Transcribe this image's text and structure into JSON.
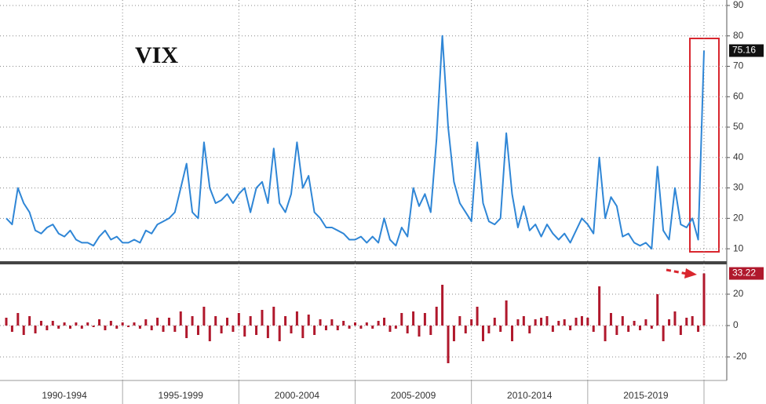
{
  "chart_data": [
    {
      "type": "line",
      "annotation": "VIX",
      "series": [
        {
          "color": "#2f86d6",
          "values": [
            20,
            18,
            30,
            25,
            22,
            16,
            15,
            17,
            18,
            15,
            14,
            16,
            13,
            12,
            12,
            11,
            14,
            16,
            13,
            14,
            12,
            12,
            13,
            12,
            16,
            15,
            18,
            19,
            20,
            22,
            30,
            38,
            22,
            20,
            45,
            30,
            25,
            26,
            28,
            25,
            28,
            30,
            22,
            30,
            32,
            25,
            43,
            25,
            22,
            28,
            45,
            30,
            34,
            22,
            20,
            17,
            17,
            16,
            15,
            13,
            13,
            14,
            12,
            14,
            12,
            20,
            13,
            11,
            17,
            14,
            30,
            24,
            28,
            22,
            46,
            80,
            50,
            32,
            25,
            22,
            19,
            45,
            25,
            19,
            18,
            20,
            48,
            28,
            17,
            24,
            16,
            18,
            14,
            18,
            15,
            13,
            15,
            12,
            16,
            20,
            18,
            15,
            40,
            20,
            27,
            24,
            14,
            15,
            12,
            11,
            12,
            10,
            37,
            16,
            13,
            30,
            18,
            17,
            20,
            13,
            75.16
          ]
        }
      ],
      "ylim": [
        5.9,
        91.8
      ],
      "yticks": [
        10,
        20,
        30,
        40,
        50,
        60,
        70,
        80,
        90
      ],
      "grid": true
    },
    {
      "type": "bar",
      "color": "#b0182c",
      "categories": [
        null,
        null,
        null,
        null,
        null,
        null,
        null,
        null,
        null,
        null,
        "1990-1994",
        null,
        null,
        null,
        null,
        null,
        null,
        null,
        null,
        null,
        null,
        null,
        null,
        null,
        null,
        null,
        null,
        null,
        null,
        null,
        "1995-1999",
        null,
        null,
        null,
        null,
        null,
        null,
        null,
        null,
        null,
        null,
        null,
        null,
        null,
        null,
        null,
        null,
        null,
        null,
        null,
        "2000-2004",
        null,
        null,
        null,
        null,
        null,
        null,
        null,
        null,
        null,
        null,
        null,
        null,
        null,
        null,
        null,
        null,
        null,
        null,
        null,
        "2005-2009",
        null,
        null,
        null,
        null,
        null,
        null,
        null,
        null,
        null,
        null,
        null,
        null,
        null,
        null,
        null,
        null,
        null,
        null,
        null,
        "2010-2014",
        null,
        null,
        null,
        null,
        null,
        null,
        null,
        null,
        null,
        null,
        null,
        null,
        null,
        null,
        null,
        null,
        null,
        null,
        null,
        "2015-2019",
        null,
        null,
        null,
        null,
        null,
        null,
        null,
        null,
        null,
        null
      ],
      "values": [
        5,
        -4,
        8,
        -6,
        6,
        -5,
        3,
        -3,
        3,
        -2,
        2,
        -2,
        2,
        -2,
        2,
        -1,
        4,
        -3,
        3,
        -2,
        2,
        -1,
        2,
        -2,
        4,
        -3,
        5,
        -4,
        5,
        -4,
        9,
        -8,
        6,
        -6,
        12,
        -10,
        6,
        -5,
        5,
        -4,
        8,
        -7,
        6,
        -6,
        10,
        -8,
        12,
        -10,
        6,
        -5,
        9,
        -8,
        7,
        -6,
        4,
        -3,
        4,
        -3,
        3,
        -2,
        2,
        -2,
        2,
        -2,
        3,
        5,
        -4,
        -2,
        8,
        -5,
        9,
        -7,
        8,
        -6,
        12,
        26,
        -24,
        -10,
        6,
        -5,
        4,
        12,
        -10,
        -5,
        5,
        -4,
        16,
        -10,
        4,
        6,
        -5,
        4,
        5,
        6,
        -4,
        3,
        4,
        -3,
        5,
        6,
        5,
        -4,
        25,
        -10,
        8,
        -6,
        6,
        -4,
        3,
        -3,
        4,
        -2,
        20,
        -10,
        4,
        9,
        -6,
        5,
        6,
        -4,
        33.22
      ],
      "ylim": [
        -32.5,
        38.5
      ],
      "yticks": [
        -20,
        0,
        20
      ],
      "grid": true
    }
  ]
}
